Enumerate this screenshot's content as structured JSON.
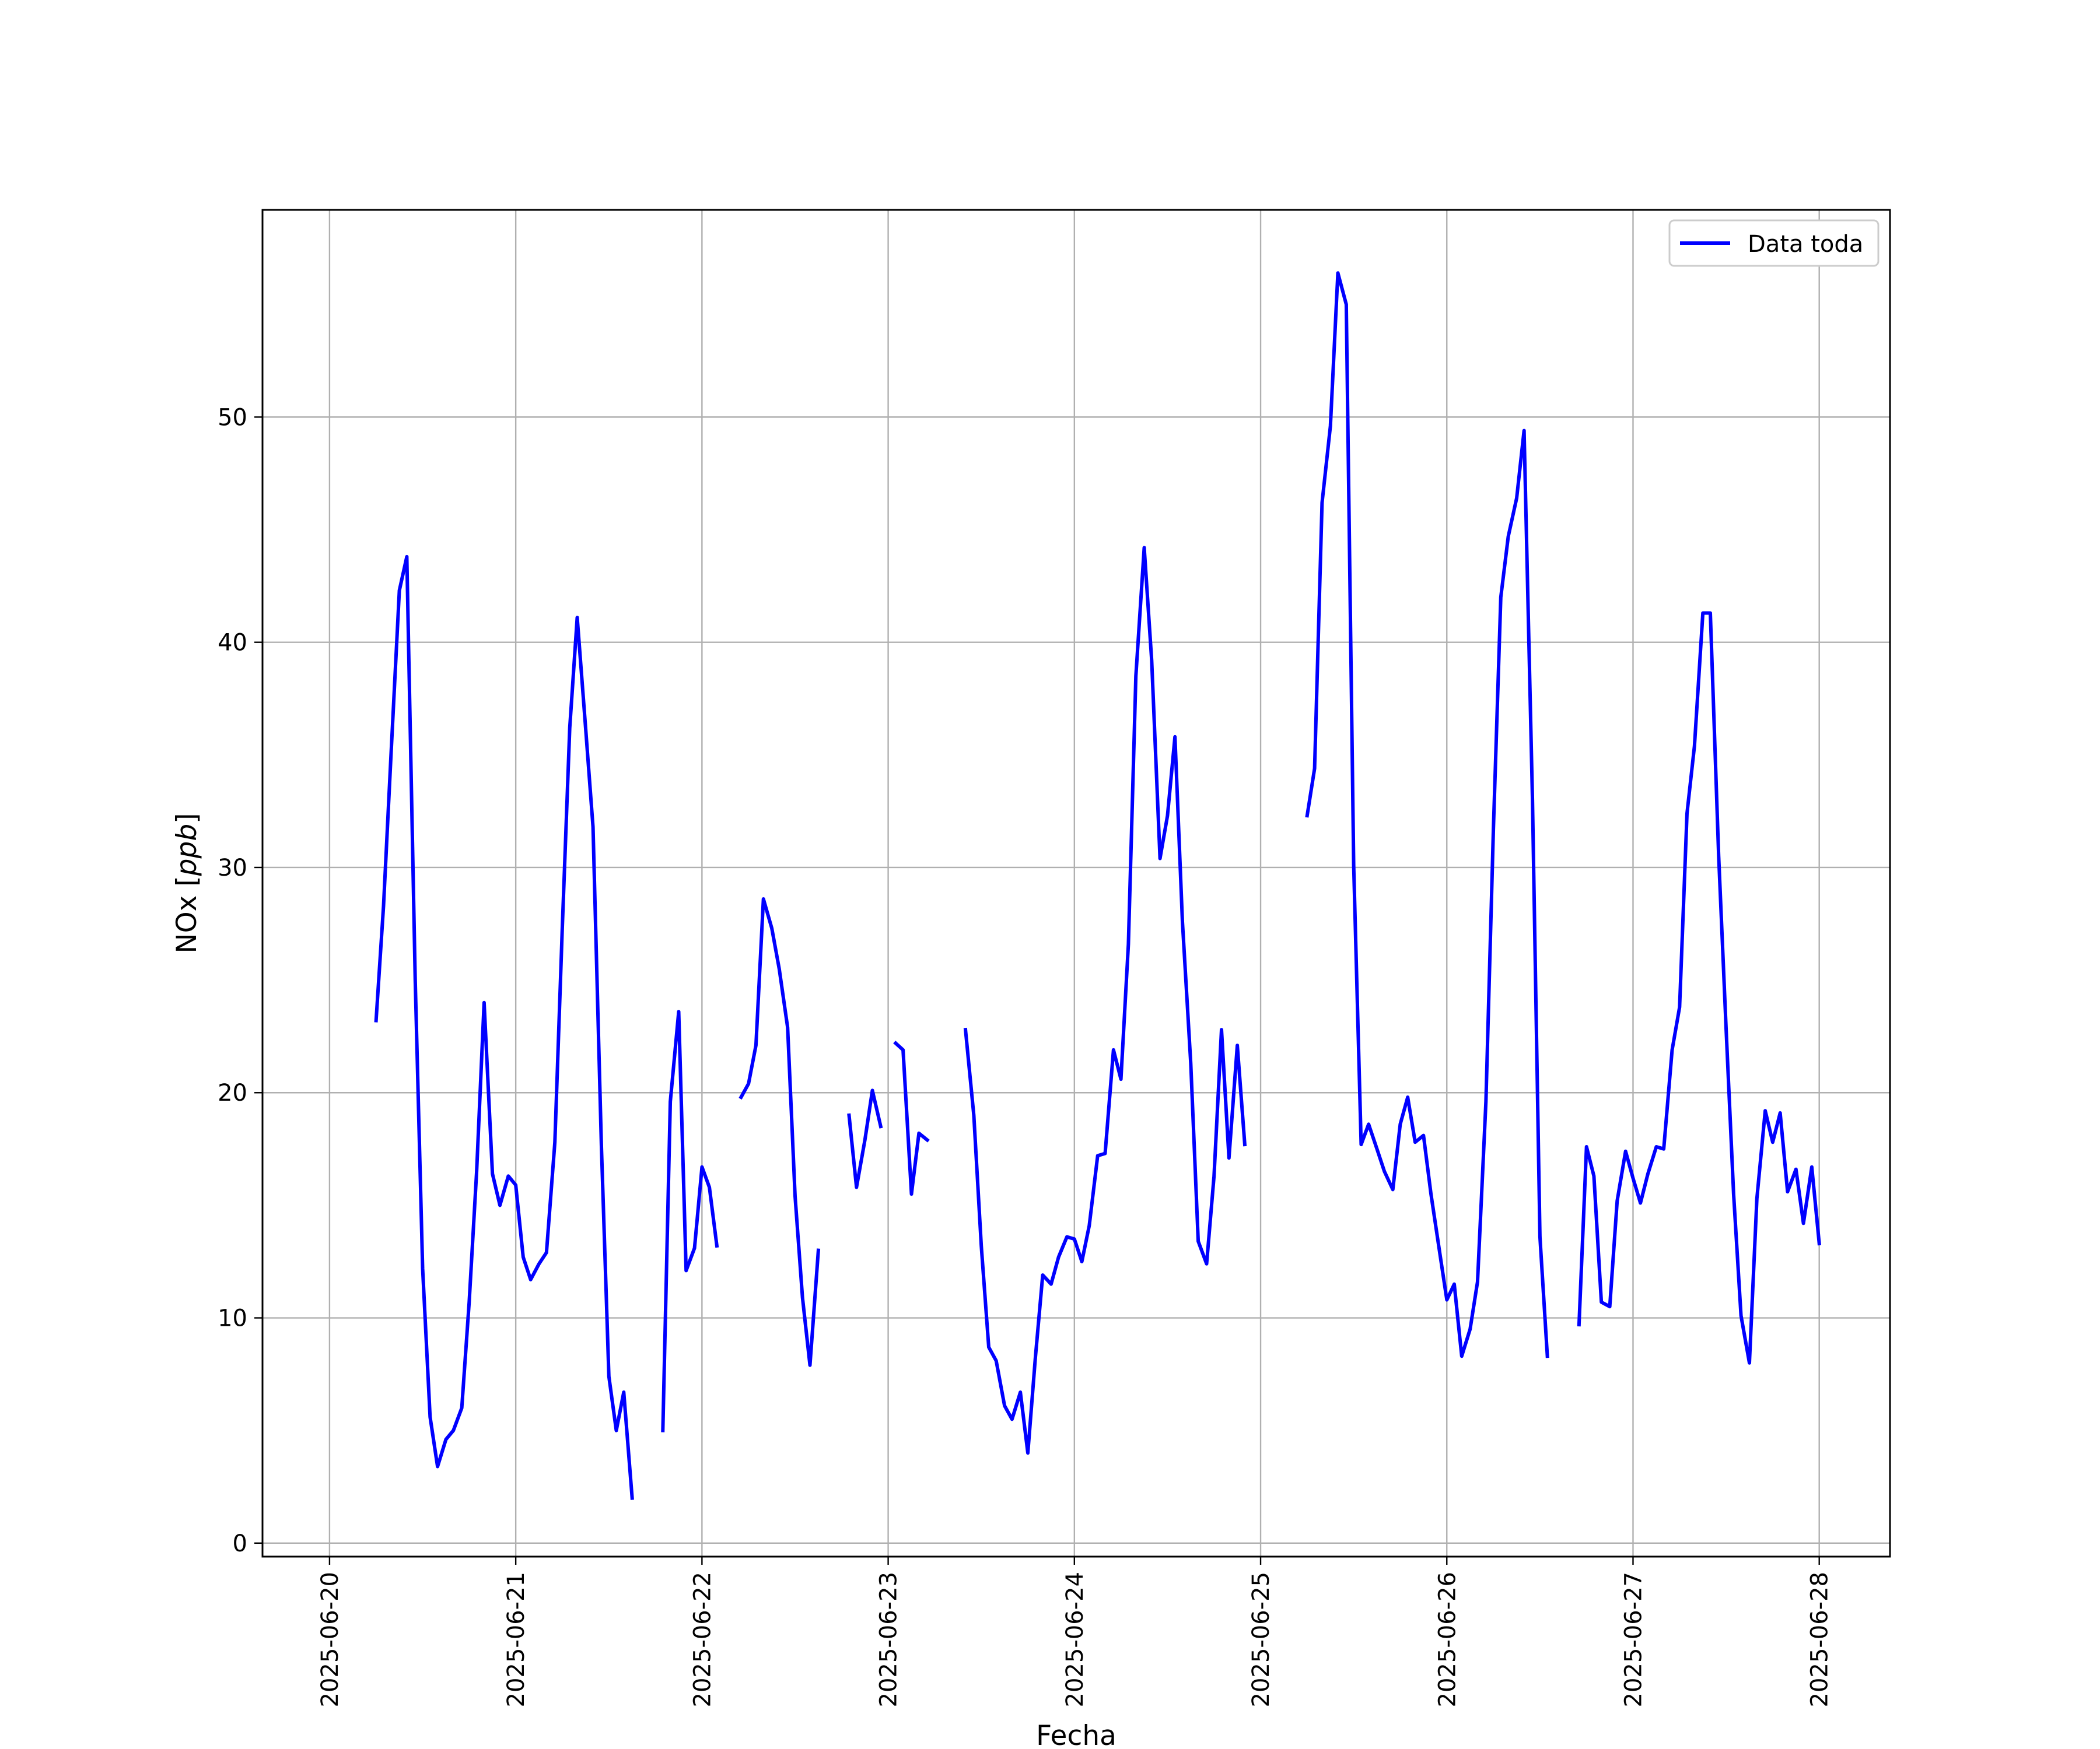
{
  "chart_data": {
    "type": "line",
    "xlabel": "Fecha",
    "ylabel_prefix": "NOx [",
    "ylabel_unit": "ppb",
    "ylabel_suffix": "]",
    "x_ticks": [
      "2025-06-20",
      "2025-06-21",
      "2025-06-22",
      "2025-06-23",
      "2025-06-24",
      "2025-06-25",
      "2025-06-26",
      "2025-06-27",
      "2025-06-28"
    ],
    "y_ticks": [
      0,
      10,
      20,
      30,
      40,
      50
    ],
    "xlim": [
      -0.36,
      8.38
    ],
    "ylim": [
      -0.6,
      59.2
    ],
    "grid": true,
    "legend_position": "top-right",
    "series": [
      {
        "name": "Data toda",
        "color": "#0000ff",
        "segments": [
          [
            [
              0.25,
              23.2
            ],
            [
              0.29,
              28.3
            ],
            [
              0.33,
              35.0
            ],
            [
              0.375,
              42.3
            ],
            [
              0.415,
              43.8
            ],
            [
              0.46,
              25.0
            ],
            [
              0.5,
              12.2
            ],
            [
              0.54,
              5.6
            ],
            [
              0.58,
              3.4
            ],
            [
              0.625,
              4.6
            ],
            [
              0.665,
              5.0
            ],
            [
              0.71,
              6.0
            ],
            [
              0.75,
              10.7
            ],
            [
              0.79,
              16.5
            ],
            [
              0.83,
              24.0
            ],
            [
              0.875,
              16.4
            ],
            [
              0.915,
              15.0
            ],
            [
              0.96,
              16.3
            ],
            [
              1.0,
              15.9
            ],
            [
              1.04,
              12.7
            ],
            [
              1.08,
              11.7
            ],
            [
              1.125,
              12.4
            ],
            [
              1.165,
              12.9
            ],
            [
              1.21,
              17.8
            ],
            [
              1.25,
              27.3
            ],
            [
              1.29,
              36.2
            ],
            [
              1.33,
              41.1
            ],
            [
              1.375,
              36.2
            ],
            [
              1.415,
              31.8
            ],
            [
              1.46,
              17.6
            ],
            [
              1.5,
              7.4
            ],
            [
              1.54,
              5.0
            ],
            [
              1.58,
              6.7
            ],
            [
              1.625,
              2.0
            ]
          ],
          [
            [
              1.79,
              5.0
            ],
            [
              1.83,
              19.6
            ],
            [
              1.875,
              23.6
            ],
            [
              1.915,
              12.1
            ],
            [
              1.96,
              13.1
            ],
            [
              2.0,
              16.7
            ],
            [
              2.04,
              15.8
            ],
            [
              2.08,
              13.2
            ]
          ],
          [
            [
              2.21,
              19.8
            ],
            [
              2.25,
              20.4
            ],
            [
              2.29,
              22.1
            ],
            [
              2.33,
              28.6
            ],
            [
              2.375,
              27.3
            ],
            [
              2.415,
              25.5
            ],
            [
              2.46,
              22.9
            ],
            [
              2.5,
              15.4
            ],
            [
              2.54,
              10.9
            ],
            [
              2.58,
              7.9
            ],
            [
              2.625,
              13.0
            ]
          ],
          [
            [
              2.79,
              19.0
            ],
            [
              2.83,
              15.8
            ],
            [
              2.875,
              17.9
            ],
            [
              2.915,
              20.1
            ],
            [
              2.96,
              18.5
            ]
          ],
          [
            [
              3.04,
              22.2
            ],
            [
              3.08,
              21.9
            ],
            [
              3.125,
              15.5
            ],
            [
              3.165,
              18.2
            ],
            [
              3.21,
              17.9
            ]
          ],
          [
            [
              3.415,
              22.8
            ],
            [
              3.46,
              19.0
            ],
            [
              3.5,
              13.2
            ],
            [
              3.54,
              8.7
            ],
            [
              3.58,
              8.1
            ],
            [
              3.625,
              6.1
            ],
            [
              3.665,
              5.5
            ],
            [
              3.71,
              6.7
            ],
            [
              3.75,
              4.0
            ],
            [
              3.79,
              8.2
            ],
            [
              3.83,
              11.9
            ],
            [
              3.875,
              11.5
            ],
            [
              3.915,
              12.7
            ],
            [
              3.96,
              13.6
            ],
            [
              4.0,
              13.5
            ],
            [
              4.04,
              12.5
            ],
            [
              4.08,
              14.1
            ],
            [
              4.125,
              17.2
            ],
            [
              4.165,
              17.3
            ],
            [
              4.21,
              21.9
            ],
            [
              4.25,
              20.6
            ],
            [
              4.29,
              26.6
            ],
            [
              4.33,
              38.5
            ],
            [
              4.375,
              44.2
            ],
            [
              4.415,
              39.2
            ],
            [
              4.46,
              30.4
            ],
            [
              4.5,
              32.3
            ],
            [
              4.54,
              35.8
            ],
            [
              4.58,
              27.6
            ],
            [
              4.625,
              21.3
            ],
            [
              4.665,
              13.4
            ],
            [
              4.71,
              12.4
            ],
            [
              4.75,
              16.3
            ],
            [
              4.79,
              22.8
            ],
            [
              4.83,
              17.1
            ],
            [
              4.875,
              22.1
            ],
            [
              4.915,
              17.7
            ]
          ],
          [
            [
              5.25,
              32.3
            ],
            [
              5.29,
              34.4
            ],
            [
              5.33,
              46.2
            ],
            [
              5.375,
              49.6
            ],
            [
              5.415,
              56.4
            ],
            [
              5.46,
              55.0
            ],
            [
              5.5,
              30.1
            ],
            [
              5.54,
              17.7
            ],
            [
              5.58,
              18.6
            ],
            [
              5.625,
              17.5
            ],
            [
              5.665,
              16.5
            ],
            [
              5.71,
              15.7
            ],
            [
              5.75,
              18.6
            ],
            [
              5.79,
              19.8
            ],
            [
              5.83,
              17.8
            ],
            [
              5.875,
              18.1
            ],
            [
              5.915,
              15.5
            ],
            [
              5.96,
              13.0
            ],
            [
              6.0,
              10.8
            ],
            [
              6.04,
              11.5
            ],
            [
              6.08,
              8.3
            ],
            [
              6.125,
              9.5
            ],
            [
              6.165,
              11.6
            ],
            [
              6.21,
              19.6
            ],
            [
              6.25,
              31.7
            ],
            [
              6.29,
              42.0
            ],
            [
              6.33,
              44.7
            ],
            [
              6.375,
              46.4
            ],
            [
              6.415,
              49.4
            ],
            [
              6.46,
              33.0
            ],
            [
              6.5,
              13.6
            ],
            [
              6.54,
              8.3
            ]
          ],
          [
            [
              6.71,
              9.7
            ],
            [
              6.75,
              17.6
            ],
            [
              6.79,
              16.3
            ],
            [
              6.83,
              10.7
            ],
            [
              6.875,
              10.5
            ],
            [
              6.915,
              15.2
            ],
            [
              6.96,
              17.4
            ],
            [
              7.0,
              16.2
            ],
            [
              7.04,
              15.1
            ],
            [
              7.08,
              16.4
            ],
            [
              7.125,
              17.6
            ],
            [
              7.165,
              17.5
            ],
            [
              7.21,
              21.9
            ],
            [
              7.25,
              23.8
            ],
            [
              7.29,
              32.4
            ],
            [
              7.33,
              35.4
            ],
            [
              7.375,
              41.3
            ],
            [
              7.415,
              41.3
            ],
            [
              7.46,
              30.5
            ],
            [
              7.5,
              22.8
            ],
            [
              7.54,
              15.5
            ],
            [
              7.58,
              10.1
            ],
            [
              7.625,
              8.0
            ],
            [
              7.665,
              15.3
            ],
            [
              7.71,
              19.2
            ],
            [
              7.75,
              17.8
            ],
            [
              7.79,
              19.1
            ],
            [
              7.83,
              15.6
            ],
            [
              7.875,
              16.6
            ],
            [
              7.915,
              14.2
            ],
            [
              7.96,
              16.7
            ],
            [
              8.0,
              13.3
            ]
          ]
        ]
      }
    ]
  }
}
